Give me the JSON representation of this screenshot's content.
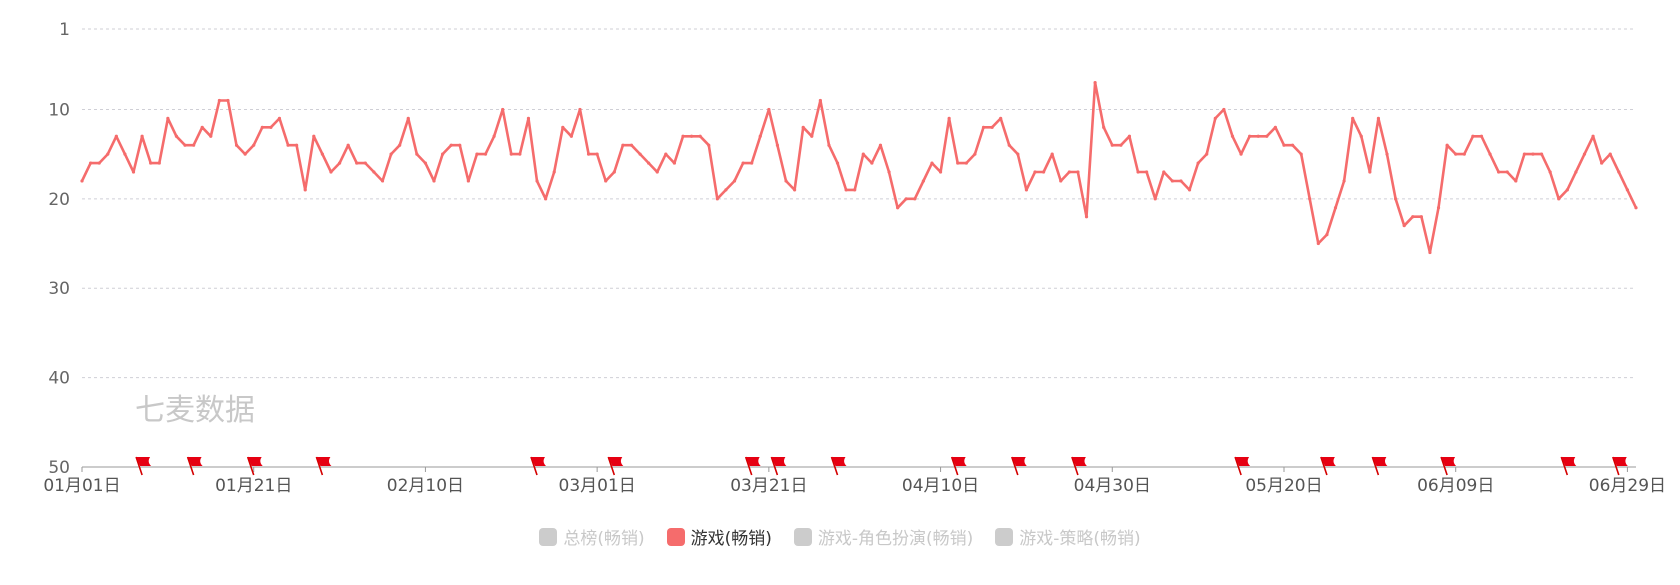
{
  "chart_data": {
    "type": "line",
    "watermark": "七麦数据",
    "y_axis": {
      "inverted": true,
      "min": 1,
      "max": 50,
      "ticks": [
        1,
        10,
        20,
        30,
        40,
        50
      ],
      "grid": "dashed"
    },
    "x_ticks": [
      "01月01日",
      "01月21日",
      "02月10日",
      "03月01日",
      "03月21日",
      "04月10日",
      "04月30日",
      "05月20日",
      "06月09日",
      "06月29日"
    ],
    "x_first": "2024-01-01",
    "series": [
      {
        "name": "游戏(畅销)",
        "color": "#f56c6c",
        "values": [
          18,
          16,
          16,
          15,
          13,
          15,
          17,
          13,
          16,
          16,
          11,
          13,
          14,
          14,
          12,
          13,
          9,
          9,
          14,
          15,
          14,
          12,
          12,
          11,
          14,
          14,
          19,
          13,
          15,
          17,
          16,
          14,
          16,
          16,
          17,
          18,
          15,
          14,
          11,
          15,
          16,
          18,
          15,
          14,
          14,
          18,
          15,
          15,
          13,
          10,
          15,
          15,
          11,
          18,
          20,
          17,
          12,
          13,
          10,
          15,
          15,
          18,
          17,
          14,
          14,
          15,
          16,
          17,
          15,
          16,
          13,
          13,
          13,
          14,
          20,
          19,
          18,
          16,
          16,
          13,
          10,
          14,
          18,
          19,
          12,
          13,
          9,
          14,
          16,
          19,
          19,
          15,
          16,
          14,
          17,
          21,
          20,
          20,
          18,
          16,
          17,
          11,
          16,
          16,
          15,
          12,
          12,
          11,
          14,
          15,
          19,
          17,
          17,
          15,
          18,
          17,
          17,
          22,
          7,
          12,
          14,
          14,
          13,
          17,
          17,
          20,
          17,
          18,
          18,
          19,
          16,
          15,
          11,
          10,
          13,
          15,
          13,
          13,
          13,
          12,
          14,
          14,
          15,
          20,
          25,
          24,
          21,
          18,
          11,
          13,
          17,
          11,
          15,
          20,
          23,
          22,
          22,
          26,
          21,
          14,
          15,
          15,
          13,
          13,
          15,
          17,
          17,
          18,
          15,
          15,
          15,
          17,
          20,
          19,
          17,
          15,
          13,
          16,
          15,
          17,
          19,
          21
        ]
      }
    ],
    "markers": [
      "01-08",
      "01-14",
      "01-21",
      "01-29",
      "02-23",
      "03-03",
      "03-19",
      "03-22",
      "03-29",
      "04-12",
      "04-19",
      "04-26",
      "05-15",
      "05-25",
      "05-31",
      "06-08",
      "06-22",
      "06-28"
    ]
  },
  "legend": [
    {
      "label": "总榜(畅销)",
      "color": "#cccccc",
      "active": false
    },
    {
      "label": "游戏(畅销)",
      "color": "#f56c6c",
      "active": true
    },
    {
      "label": "游戏-角色扮演(畅销)",
      "color": "#cccccc",
      "active": false
    },
    {
      "label": "游戏-策略(畅销)",
      "color": "#cccccc",
      "active": false
    }
  ]
}
